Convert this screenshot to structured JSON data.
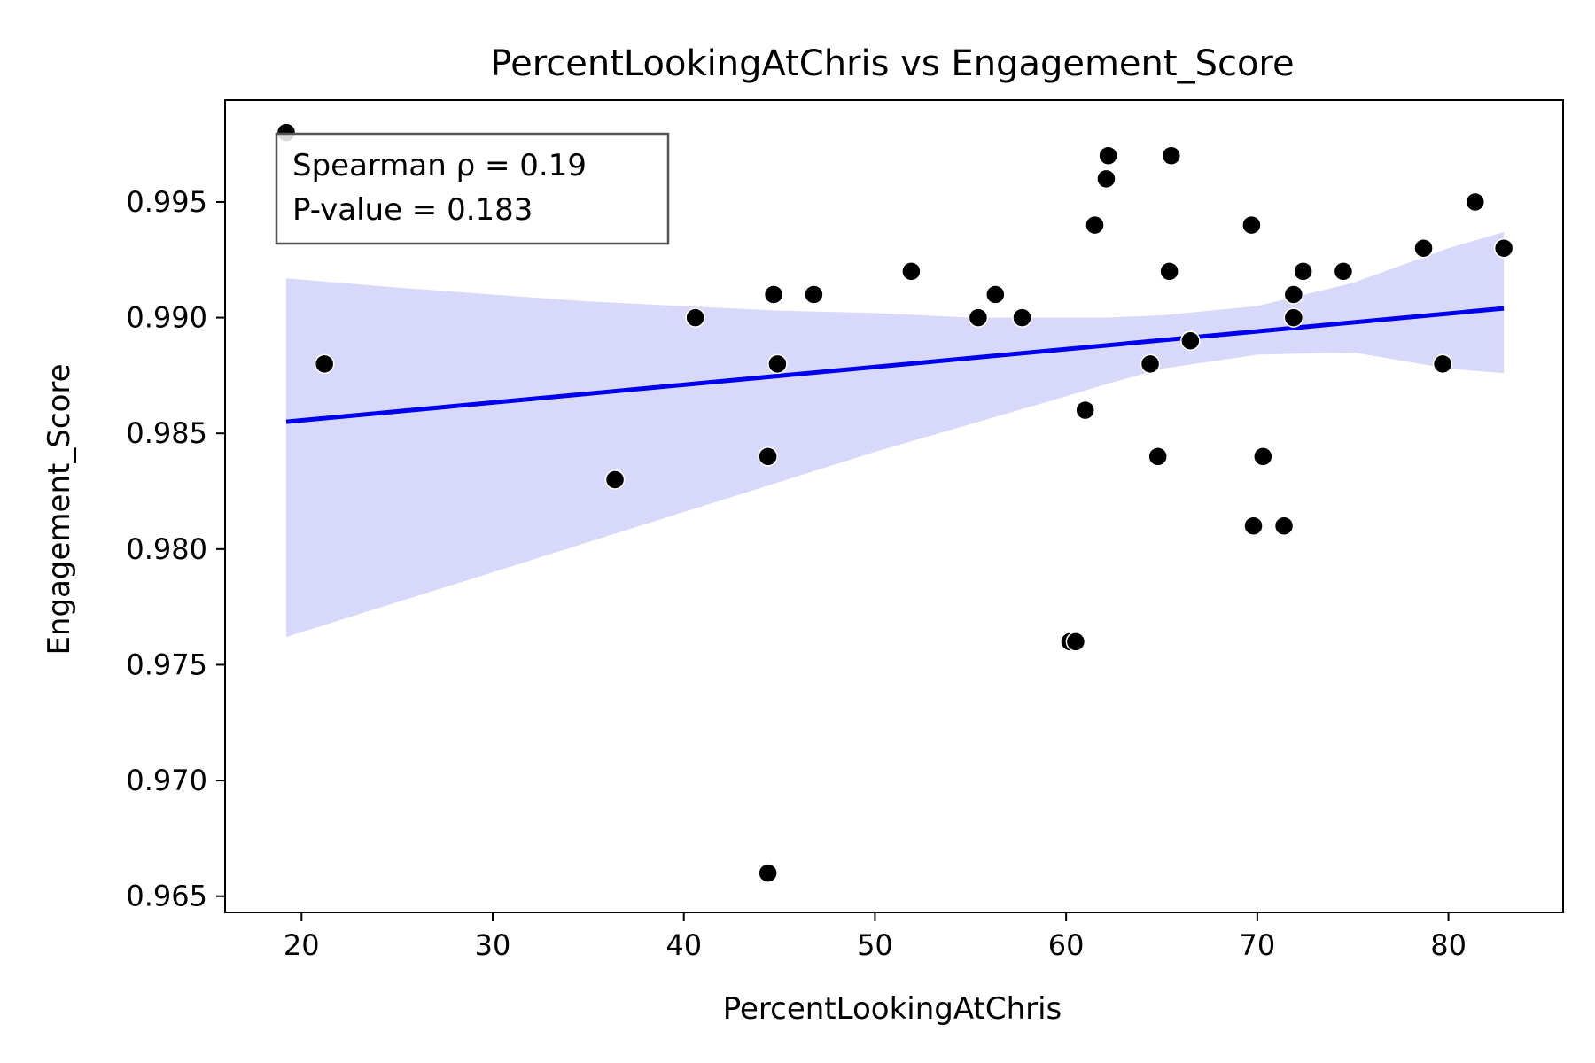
{
  "chart_data": {
    "type": "scatter",
    "title": "PercentLookingAtChris vs Engagement_Score",
    "xlabel": "PercentLookingAtChris",
    "ylabel": "Engagement_Score",
    "xlim": [
      16,
      86
    ],
    "ylim": [
      0.9643,
      0.9994
    ],
    "xticks": [
      20,
      30,
      40,
      50,
      60,
      70,
      80
    ],
    "yticks": [
      0.965,
      0.97,
      0.975,
      0.98,
      0.985,
      0.99,
      0.995
    ],
    "xtick_labels": [
      "20",
      "30",
      "40",
      "50",
      "60",
      "70",
      "80"
    ],
    "ytick_labels": [
      "0.965",
      "0.970",
      "0.975",
      "0.980",
      "0.985",
      "0.990",
      "0.995"
    ],
    "grid": false,
    "point_color": "#000000",
    "line_color": "#0000ee",
    "band_color": "#d8d8fb",
    "points": [
      {
        "x": 19.2,
        "y": 0.998
      },
      {
        "x": 21.2,
        "y": 0.988
      },
      {
        "x": 36.4,
        "y": 0.983
      },
      {
        "x": 40.6,
        "y": 0.99
      },
      {
        "x": 44.4,
        "y": 0.984
      },
      {
        "x": 44.4,
        "y": 0.966
      },
      {
        "x": 44.7,
        "y": 0.991
      },
      {
        "x": 44.9,
        "y": 0.988
      },
      {
        "x": 46.8,
        "y": 0.991
      },
      {
        "x": 51.9,
        "y": 0.992
      },
      {
        "x": 55.4,
        "y": 0.99
      },
      {
        "x": 56.3,
        "y": 0.991
      },
      {
        "x": 57.7,
        "y": 0.99
      },
      {
        "x": 60.2,
        "y": 0.976
      },
      {
        "x": 60.5,
        "y": 0.976
      },
      {
        "x": 61.0,
        "y": 0.986
      },
      {
        "x": 61.5,
        "y": 0.994
      },
      {
        "x": 62.1,
        "y": 0.996
      },
      {
        "x": 62.2,
        "y": 0.997
      },
      {
        "x": 64.4,
        "y": 0.988
      },
      {
        "x": 64.8,
        "y": 0.984
      },
      {
        "x": 65.4,
        "y": 0.992
      },
      {
        "x": 65.5,
        "y": 0.997
      },
      {
        "x": 66.5,
        "y": 0.989
      },
      {
        "x": 69.7,
        "y": 0.994
      },
      {
        "x": 69.8,
        "y": 0.981
      },
      {
        "x": 70.3,
        "y": 0.984
      },
      {
        "x": 71.4,
        "y": 0.981
      },
      {
        "x": 71.9,
        "y": 0.991
      },
      {
        "x": 71.9,
        "y": 0.99
      },
      {
        "x": 72.4,
        "y": 0.992
      },
      {
        "x": 74.5,
        "y": 0.992
      },
      {
        "x": 78.7,
        "y": 0.993
      },
      {
        "x": 79.7,
        "y": 0.988
      },
      {
        "x": 81.4,
        "y": 0.995
      },
      {
        "x": 82.9,
        "y": 0.993
      }
    ],
    "regression": {
      "x": [
        19.2,
        82.9
      ],
      "y": [
        0.9855,
        0.9904
      ]
    },
    "confidence_band": {
      "x": [
        19.2,
        25,
        30,
        35,
        40,
        45,
        50,
        55,
        60,
        62,
        65,
        70,
        75,
        80,
        82.9
      ],
      "upper": [
        0.9917,
        0.9913,
        0.991,
        0.9907,
        0.9905,
        0.9903,
        0.9902,
        0.99,
        0.99,
        0.99,
        0.9901,
        0.9905,
        0.9915,
        0.993,
        0.9937
      ],
      "lower": [
        0.9762,
        0.9777,
        0.979,
        0.9803,
        0.9816,
        0.9829,
        0.9842,
        0.9854,
        0.9866,
        0.9871,
        0.9878,
        0.9884,
        0.9885,
        0.9878,
        0.9876
      ]
    },
    "annotation": {
      "line1": "Spearman ρ = 0.19",
      "line2": "P-value = 0.183",
      "placement": "top-left"
    }
  }
}
